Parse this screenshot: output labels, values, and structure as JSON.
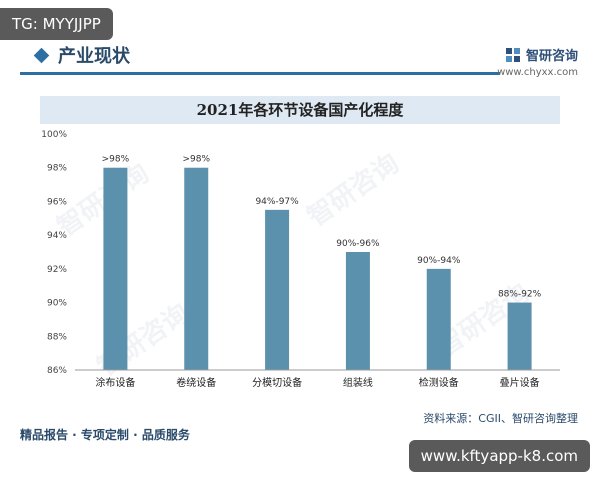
{
  "badge_top": "TG: MYYJJPP",
  "header": {
    "title": "产业现状",
    "brand_name": "智研咨询",
    "brand_url": "www.chyxx.com"
  },
  "watermarks": [
    "智研咨询",
    "智研咨询",
    "智研咨询",
    "智研咨询"
  ],
  "chart_data": {
    "type": "bar",
    "title": "2021年各环节设备国产化程度",
    "categories": [
      "涂布设备",
      "卷绕设备",
      "分模切设备",
      "组装线",
      "检测设备",
      "叠片设备"
    ],
    "values": [
      98,
      98,
      95.5,
      93,
      92,
      90
    ],
    "data_labels": [
      ">98%",
      ">98%",
      "94%-97%",
      "90%-96%",
      "90%-94%",
      "88%-92%"
    ],
    "ylim": [
      86,
      100
    ],
    "yticks": [
      86,
      88,
      90,
      92,
      94,
      96,
      98,
      100
    ],
    "ytick_labels": [
      "86%",
      "88%",
      "90%",
      "92%",
      "94%",
      "96%",
      "98%",
      "100%"
    ],
    "bar_color": "#5b91ad",
    "grid": false,
    "xlabel": "",
    "ylabel": ""
  },
  "source": "资料来源：CGII、智研咨询整理",
  "footer_left": "精品报告 · 专项定制 · 品质服务",
  "badge_bottom": "www.kftyapp-k8.com"
}
